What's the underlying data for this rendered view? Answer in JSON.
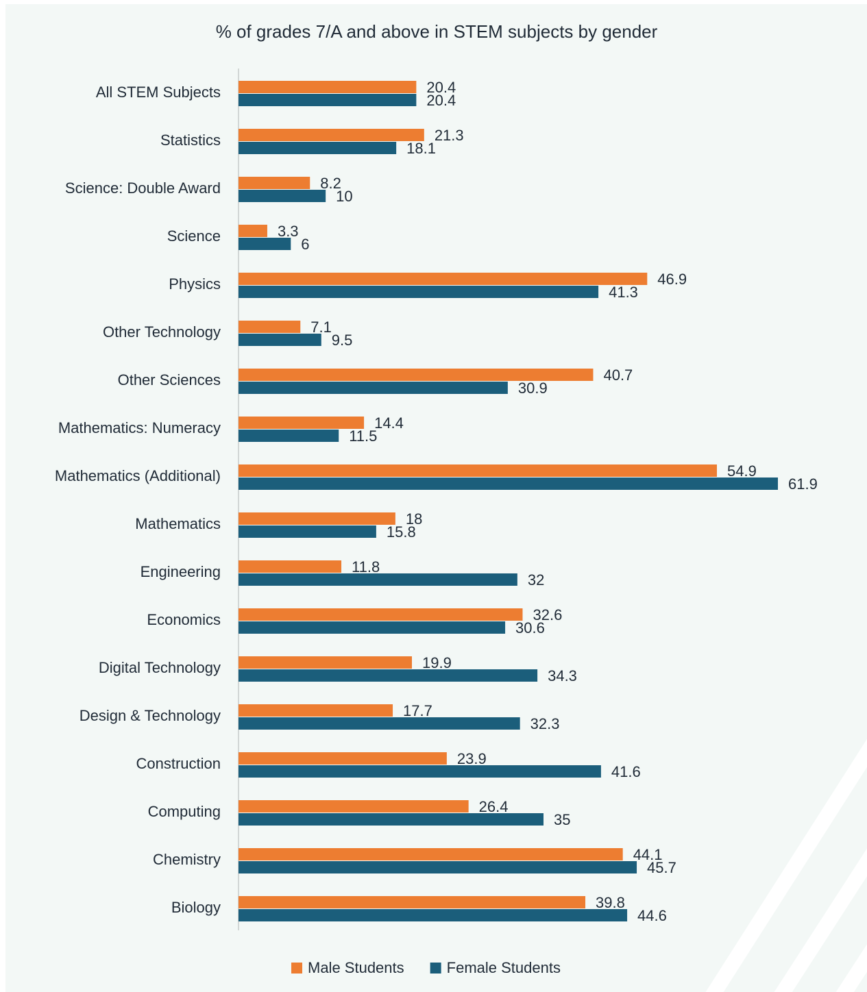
{
  "chart_data": {
    "type": "barh",
    "title": "% of grades 7/A and above in STEM subjects by gender",
    "categories": [
      "All STEM Subjects",
      "Statistics",
      "Science: Double Award",
      "Science",
      "Physics",
      "Other Technology",
      "Other Sciences",
      "Mathematics: Numeracy",
      "Mathematics  (Additional)",
      "Mathematics",
      "Engineering",
      "Economics",
      "Digital Technology",
      "Design & Technology",
      "Construction",
      "Computing",
      "Chemistry",
      "Biology"
    ],
    "series": [
      {
        "name": "Male Students",
        "color": "#ed7d31",
        "values": [
          20.4,
          21.3,
          8.2,
          3.3,
          46.9,
          7.1,
          40.7,
          14.4,
          54.9,
          18,
          11.8,
          32.6,
          19.9,
          17.7,
          23.9,
          26.4,
          44.1,
          39.8
        ]
      },
      {
        "name": "Female Students",
        "color": "#1b5e7b",
        "values": [
          20.4,
          18.1,
          10,
          6,
          41.3,
          9.5,
          30.9,
          11.5,
          61.9,
          15.8,
          32,
          30.6,
          34.3,
          32.3,
          41.6,
          35,
          45.7,
          44.6
        ]
      }
    ],
    "xlim": [
      0,
      70
    ],
    "grid": false,
    "legend": "bottom"
  }
}
